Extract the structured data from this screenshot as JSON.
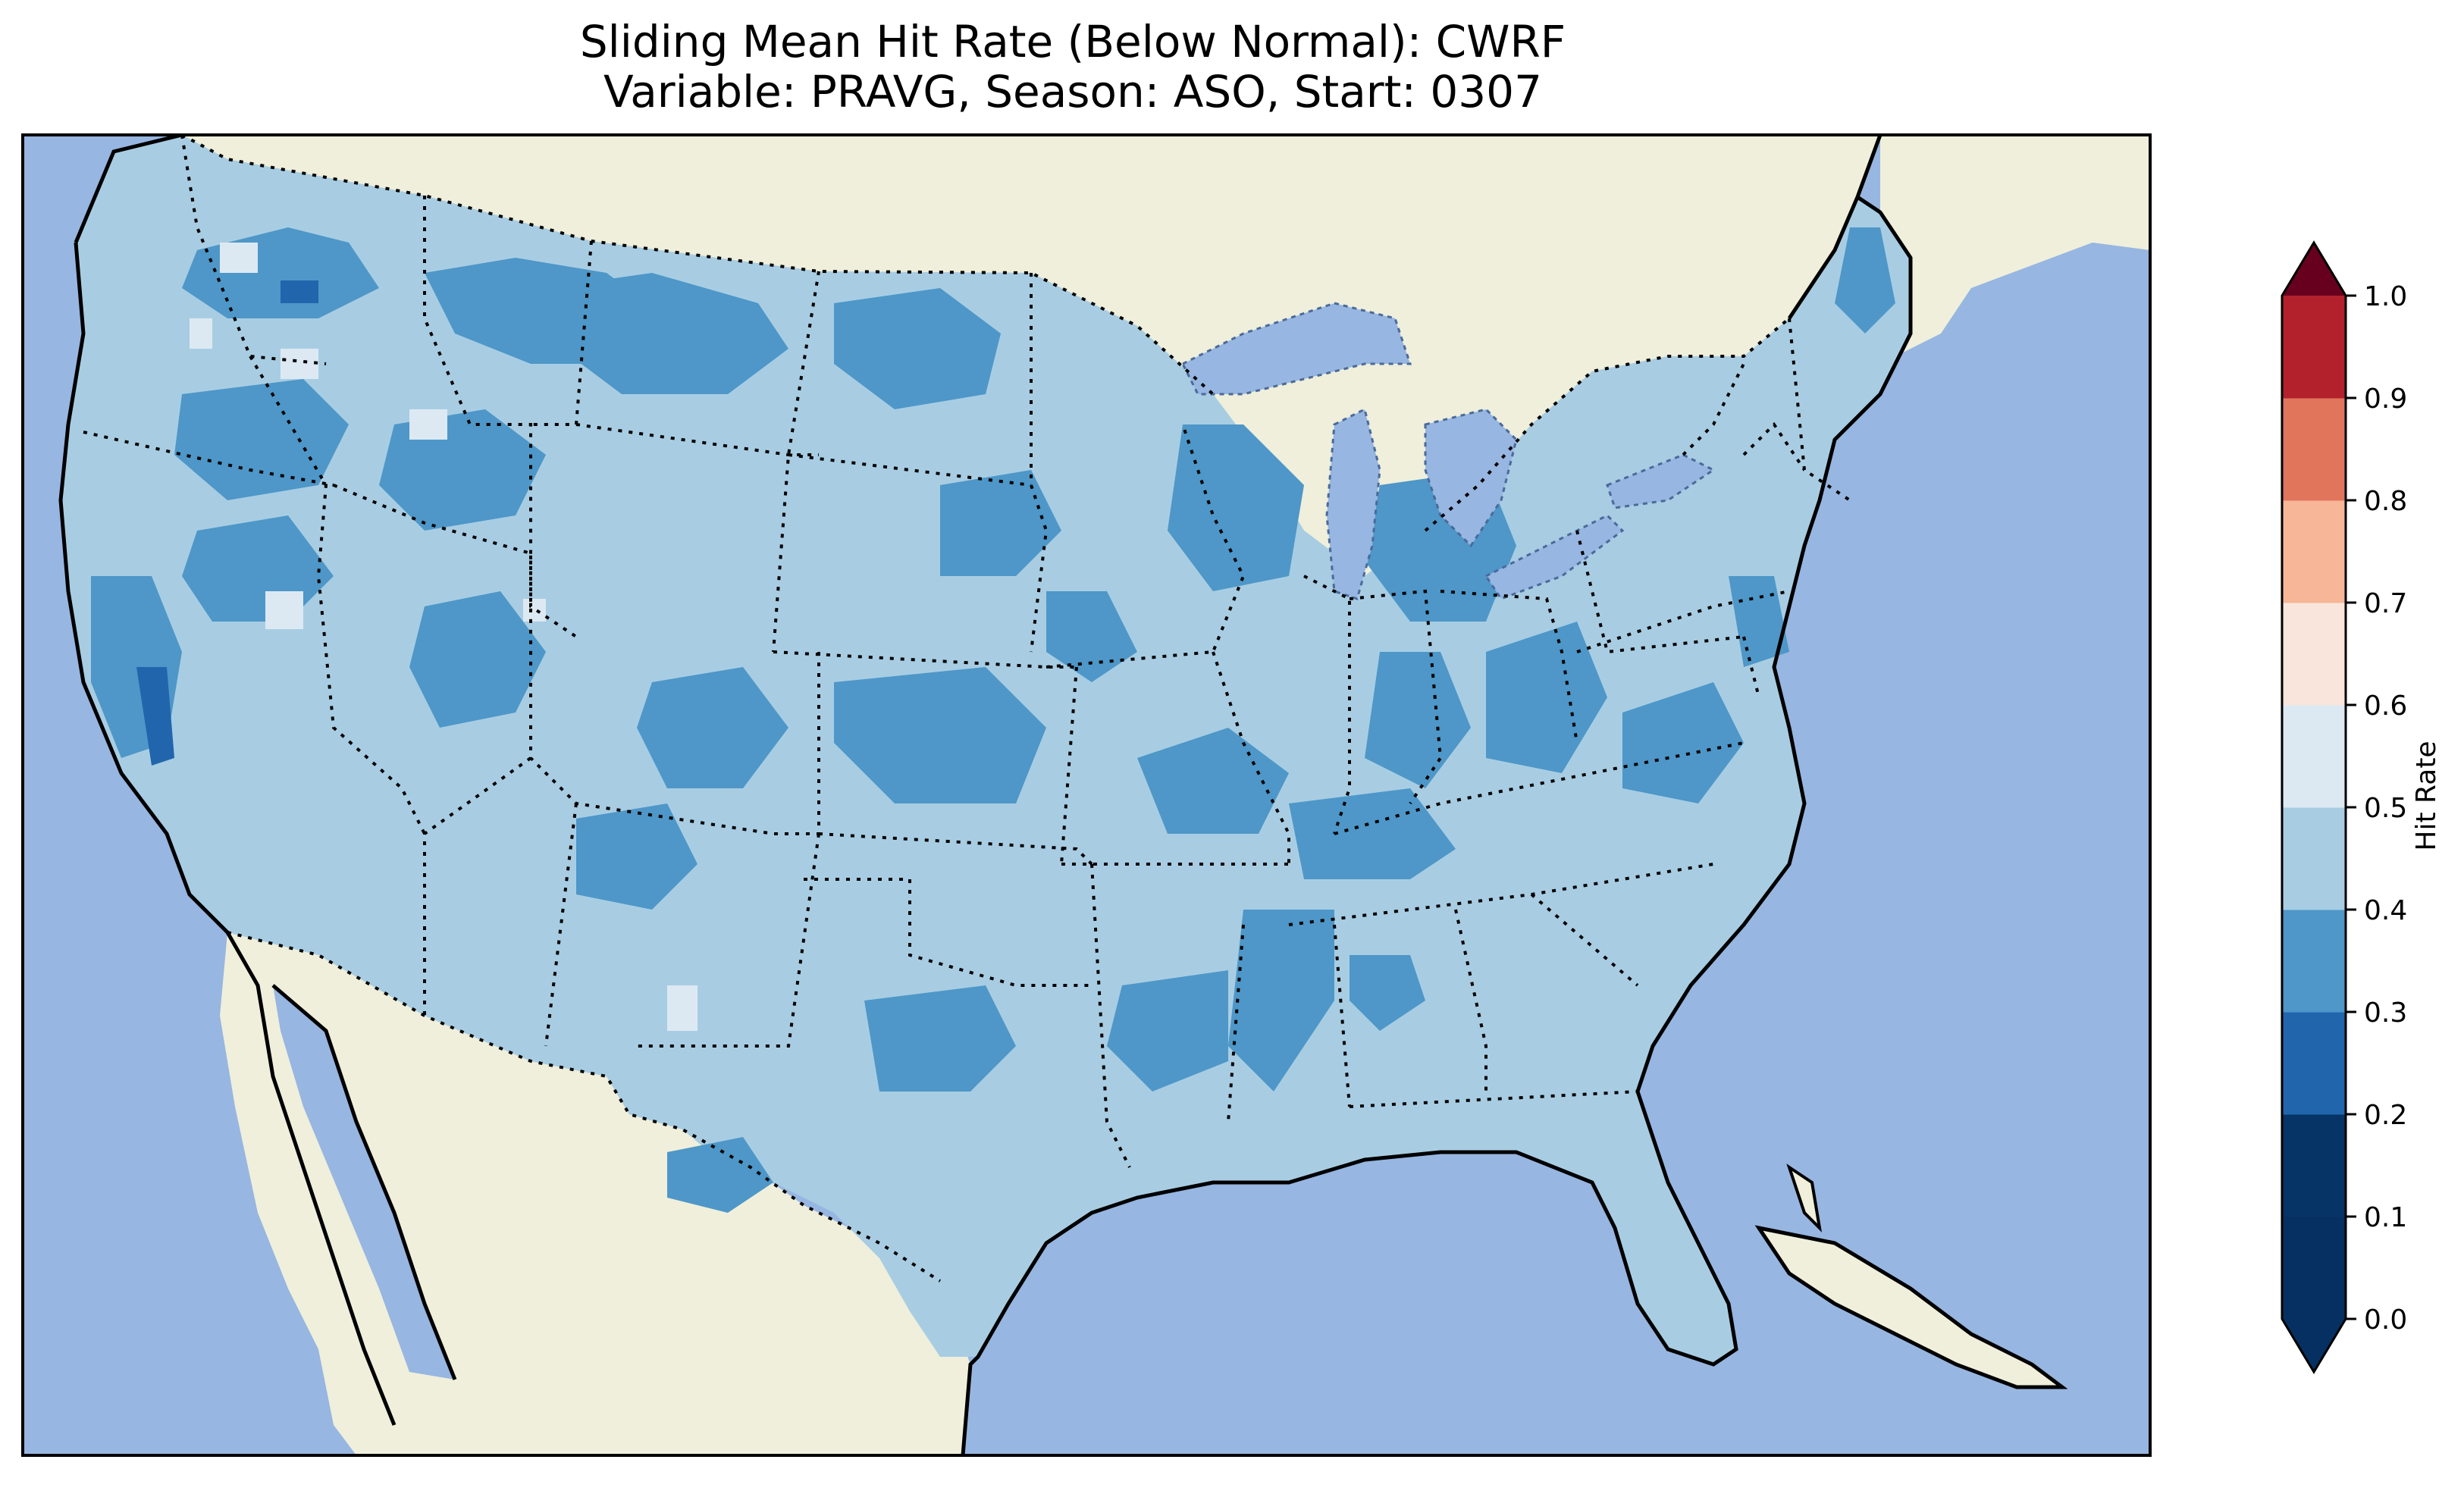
{
  "title": {
    "line1": "Sliding Mean Hit Rate (Below Normal): CWRF",
    "line2": "Variable: PRAVG, Season: ASO, Start: 0307"
  },
  "map": {
    "region": "Contiguous United States",
    "ocean_color": "#97b6e1",
    "land_color": "#efefdb",
    "lake_color": "#97b6e1"
  },
  "colorbar": {
    "label": "Hit Rate",
    "ticks": [
      "0.0",
      "0.1",
      "0.2",
      "0.3",
      "0.4",
      "0.5",
      "0.6",
      "0.7",
      "0.8",
      "0.9",
      "1.0"
    ],
    "colors": [
      "#053061",
      "#2166ac",
      "#4393c3",
      "#92c5de",
      "#d1e5f0",
      "#f7f7f7",
      "#fddbc7",
      "#f4a582",
      "#d6604d",
      "#b2182b",
      "#67001f"
    ],
    "bins": [
      "#073466",
      "#2166ac",
      "#4e97c8",
      "#a8cde3",
      "#dde9f2",
      "#f9e5dc",
      "#f6b697",
      "#e0755c",
      "#b2212c"
    ],
    "under_color": "#053061",
    "over_color": "#67001f",
    "extend": "both"
  }
}
